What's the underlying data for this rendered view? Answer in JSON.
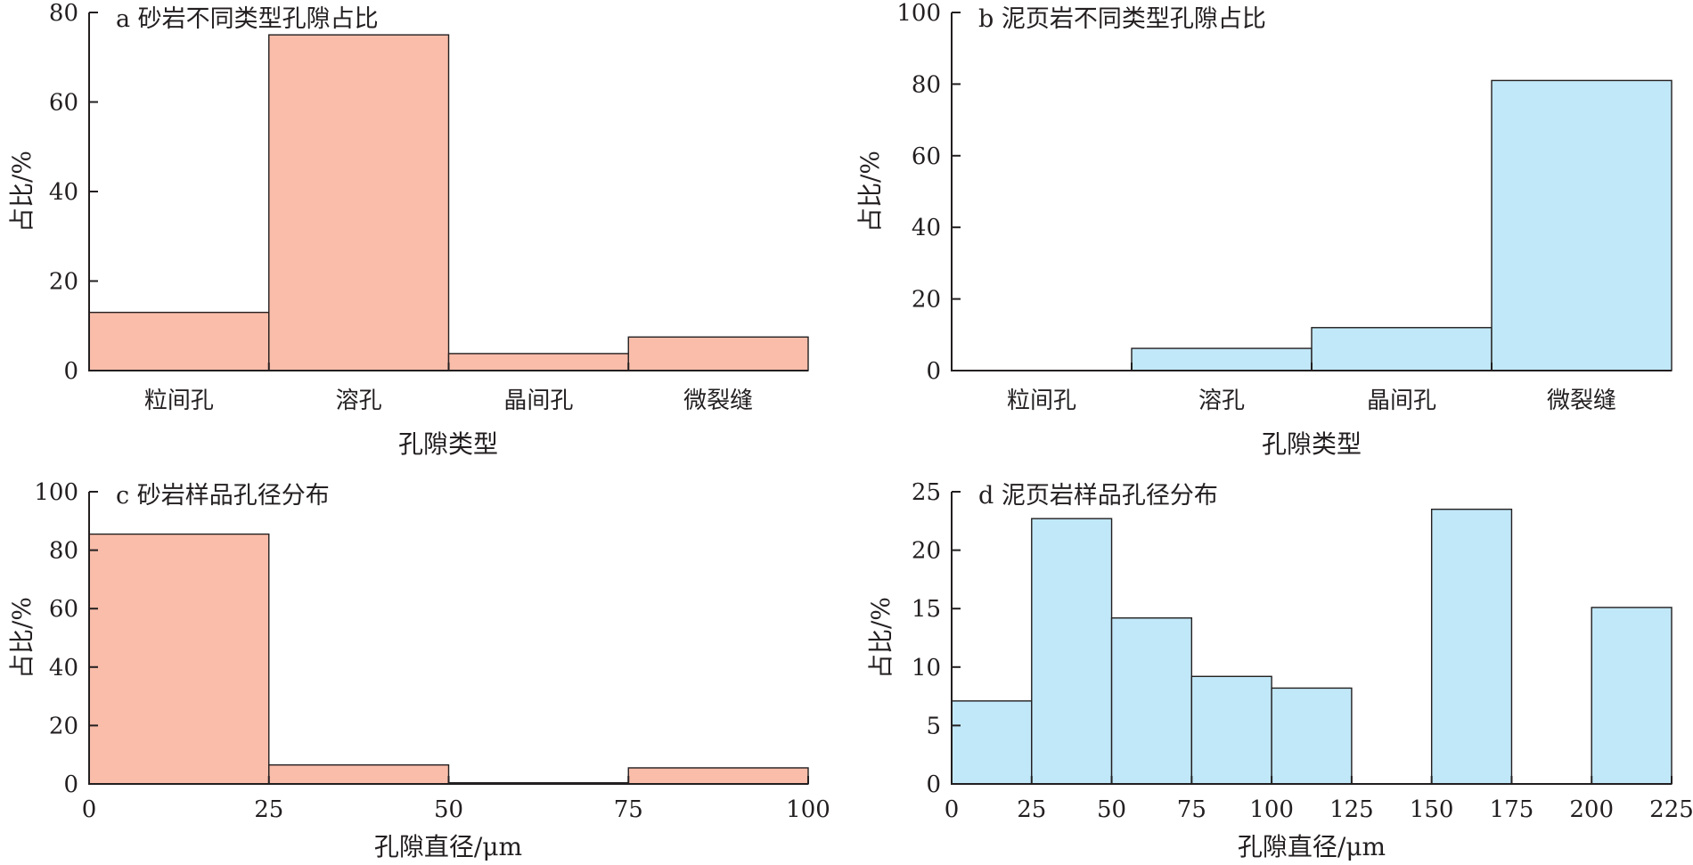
{
  "colors": {
    "sandstone": "#f9bdaa",
    "shale": "#c1e8f8",
    "axis": "#231f20"
  },
  "chart_data": [
    {
      "id": "a",
      "type": "bar",
      "title": "a 砂岩不同类型孔隙占比",
      "xlabel": "孔隙类型",
      "ylabel": "占比/%",
      "categories": [
        "粒间孔",
        "溶孔",
        "晶间孔",
        "微裂缝"
      ],
      "values": [
        13,
        75,
        3.8,
        7.5
      ],
      "ylim": [
        0,
        80
      ],
      "yticks": [
        "0",
        "20",
        "40",
        "60",
        "80"
      ],
      "color": "#f9bdaa",
      "grid": false
    },
    {
      "id": "b",
      "type": "bar",
      "title": "b 泥页岩不同类型孔隙占比",
      "xlabel": "孔隙类型",
      "ylabel": "占比/%",
      "categories": [
        "粒间孔",
        "溶孔",
        "晶间孔",
        "微裂缝"
      ],
      "values": [
        0,
        6.2,
        12,
        81
      ],
      "ylim": [
        0,
        100
      ],
      "yticks": [
        "0",
        "20",
        "40",
        "60",
        "80",
        "100"
      ],
      "color": "#c1e8f8",
      "grid": false
    },
    {
      "id": "c",
      "type": "bar",
      "title": "c 砂岩样品孔径分布",
      "xlabel": "孔隙直径/μm",
      "ylabel": "占比/%",
      "bins": [
        [
          0,
          25
        ],
        [
          25,
          50
        ],
        [
          50,
          75
        ],
        [
          75,
          100
        ]
      ],
      "values": [
        85.5,
        6.5,
        0.4,
        5.5
      ],
      "xlim": [
        0,
        100
      ],
      "xticks": [
        "0",
        "25",
        "50",
        "75",
        "100"
      ],
      "ylim": [
        0,
        100
      ],
      "yticks": [
        "0",
        "20",
        "40",
        "60",
        "80",
        "100"
      ],
      "color": "#f9bdaa",
      "grid": false
    },
    {
      "id": "d",
      "type": "bar",
      "title": "d 泥页岩样品孔径分布",
      "xlabel": "孔隙直径/μm",
      "ylabel": "占比/%",
      "bins": [
        [
          0,
          25
        ],
        [
          25,
          50
        ],
        [
          50,
          75
        ],
        [
          75,
          100
        ],
        [
          100,
          125
        ],
        [
          125,
          150
        ],
        [
          150,
          175
        ],
        [
          175,
          200
        ],
        [
          200,
          225
        ]
      ],
      "values": [
        7.1,
        22.7,
        14.2,
        9.2,
        8.2,
        0,
        23.5,
        0,
        15.1
      ],
      "xlim": [
        0,
        225
      ],
      "xticks": [
        "0",
        "25",
        "50",
        "75",
        "100",
        "125",
        "150",
        "175",
        "200",
        "225"
      ],
      "ylim": [
        0,
        25
      ],
      "yticks": [
        "0",
        "5",
        "10",
        "15",
        "20",
        "25"
      ],
      "color": "#c1e8f8",
      "grid": false
    }
  ]
}
